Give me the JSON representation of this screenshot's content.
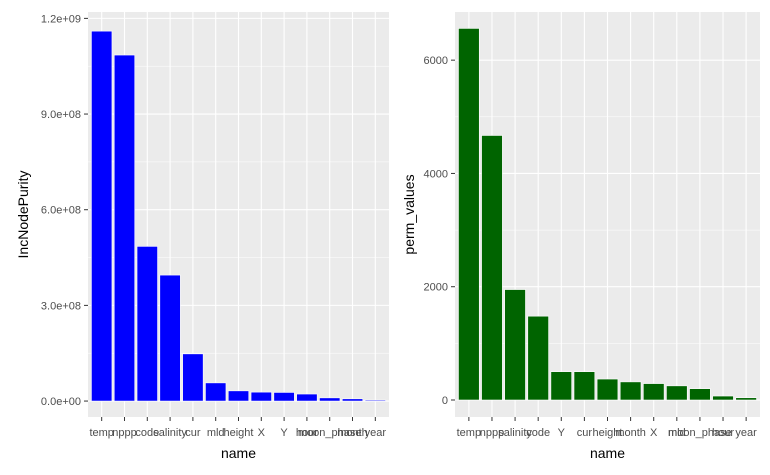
{
  "chart_data": [
    {
      "type": "bar",
      "xlabel": "name",
      "ylabel": "IncNodePurity",
      "ylim": [
        -50000000,
        1220000000
      ],
      "yticks": [
        0,
        300000000,
        600000000,
        900000000,
        1200000000
      ],
      "ytick_labels": [
        "0.0e+00",
        "3.0e+08",
        "6.0e+08",
        "9.0e+08",
        "1.2e+09"
      ],
      "bar_color": "#0000ff",
      "categories": [
        "temp",
        "nppp",
        "code",
        "salinity",
        "cur",
        "mld",
        "height",
        "X",
        "Y",
        "hour",
        "moon_phase",
        "month",
        "year"
      ],
      "values": [
        1160000000,
        1085000000,
        485000000,
        395000000,
        148000000,
        57000000,
        32000000,
        28000000,
        27000000,
        22000000,
        10000000,
        7000000,
        3000000
      ]
    },
    {
      "type": "bar",
      "xlabel": "name",
      "ylabel": "perm_values",
      "ylim": [
        -300,
        6850
      ],
      "yticks": [
        0,
        2000,
        4000,
        6000
      ],
      "ytick_labels": [
        "0",
        "2000",
        "4000",
        "6000"
      ],
      "bar_color": "#006400",
      "categories": [
        "temp",
        "nppp",
        "salinity",
        "code",
        "Y",
        "cur",
        "height",
        "month",
        "X",
        "mld",
        "moon_phase",
        "hour",
        "year"
      ],
      "values": [
        6560,
        4670,
        1950,
        1480,
        500,
        500,
        370,
        320,
        290,
        250,
        200,
        70,
        40
      ]
    }
  ]
}
